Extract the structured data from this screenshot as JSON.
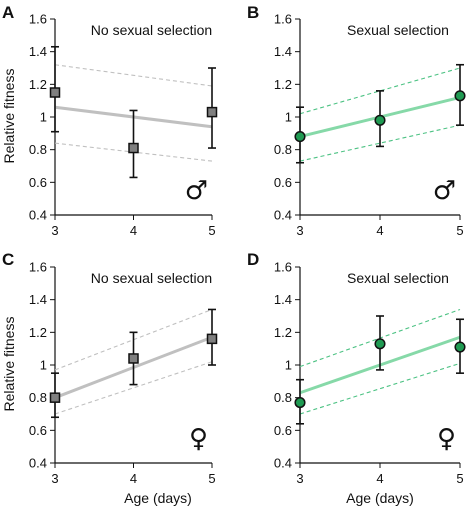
{
  "figure": {
    "ylabel": "Relative fitness",
    "xlabel": "Age (days)",
    "colors": {
      "grey_line": "#c0c0c0",
      "grey_marker": "#7f7f7f",
      "green_line": "#86d9a8",
      "green_dash": "#4cc283",
      "green_marker": "#1f9a52",
      "axis": "#111111"
    }
  },
  "chart_data": [
    {
      "type": "scatter",
      "panel": "A",
      "title": "No sexual selection",
      "sex_symbol": "♂",
      "ylabel": "Relative fitness",
      "xlabel": "",
      "marker": "square",
      "style": "grey",
      "xlim": [
        3,
        5
      ],
      "ylim": [
        0.4,
        1.6
      ],
      "xticks": [
        3,
        4,
        5
      ],
      "yticks": [
        0.4,
        0.6,
        0.8,
        1,
        1.2,
        1.4,
        1.6
      ],
      "points": [
        {
          "x": 3,
          "y": 1.15,
          "lo": 0.91,
          "hi": 1.43
        },
        {
          "x": 4,
          "y": 0.81,
          "lo": 0.63,
          "hi": 1.04
        },
        {
          "x": 5,
          "y": 1.03,
          "lo": 0.81,
          "hi": 1.3
        }
      ],
      "fit": {
        "x": [
          3,
          5
        ],
        "y": [
          1.06,
          0.94
        ]
      },
      "ci_upper": {
        "x": [
          3,
          5
        ],
        "y": [
          1.32,
          1.19
        ]
      },
      "ci_lower": {
        "x": [
          3,
          5
        ],
        "y": [
          0.84,
          0.73
        ]
      }
    },
    {
      "type": "scatter",
      "panel": "B",
      "title": "Sexual selection",
      "sex_symbol": "♂",
      "ylabel": "",
      "xlabel": "",
      "marker": "circle",
      "style": "green",
      "xlim": [
        3,
        5
      ],
      "ylim": [
        0.4,
        1.6
      ],
      "xticks": [
        3,
        4,
        5
      ],
      "yticks": [
        0.4,
        0.6,
        0.8,
        1,
        1.2,
        1.4,
        1.6
      ],
      "points": [
        {
          "x": 3,
          "y": 0.88,
          "lo": 0.72,
          "hi": 1.06
        },
        {
          "x": 4,
          "y": 0.98,
          "lo": 0.82,
          "hi": 1.16
        },
        {
          "x": 5,
          "y": 1.13,
          "lo": 0.95,
          "hi": 1.32
        }
      ],
      "fit": {
        "x": [
          3,
          5
        ],
        "y": [
          0.88,
          1.12
        ]
      },
      "ci_upper": {
        "x": [
          3,
          5
        ],
        "y": [
          1.02,
          1.3
        ]
      },
      "ci_lower": {
        "x": [
          3,
          5
        ],
        "y": [
          0.73,
          0.95
        ]
      }
    },
    {
      "type": "scatter",
      "panel": "C",
      "title": "No sexual selection",
      "sex_symbol": "♀",
      "ylabel": "Relative fitness",
      "xlabel": "Age (days)",
      "marker": "square",
      "style": "grey",
      "xlim": [
        3,
        5
      ],
      "ylim": [
        0.4,
        1.6
      ],
      "xticks": [
        3,
        4,
        5
      ],
      "yticks": [
        0.4,
        0.6,
        0.8,
        1,
        1.2,
        1.4,
        1.6
      ],
      "points": [
        {
          "x": 3,
          "y": 0.8,
          "lo": 0.68,
          "hi": 0.95
        },
        {
          "x": 4,
          "y": 1.04,
          "lo": 0.88,
          "hi": 1.2
        },
        {
          "x": 5,
          "y": 1.16,
          "lo": 1.0,
          "hi": 1.34
        }
      ],
      "fit": {
        "x": [
          3,
          5
        ],
        "y": [
          0.8,
          1.17
        ]
      },
      "ci_upper": {
        "x": [
          3,
          5
        ],
        "y": [
          0.97,
          1.34
        ]
      },
      "ci_lower": {
        "x": [
          3,
          5
        ],
        "y": [
          0.7,
          1.02
        ]
      }
    },
    {
      "type": "scatter",
      "panel": "D",
      "title": "Sexual selection",
      "sex_symbol": "♀",
      "ylabel": "",
      "xlabel": "Age (days)",
      "marker": "circle",
      "style": "green",
      "xlim": [
        3,
        5
      ],
      "ylim": [
        0.4,
        1.6
      ],
      "xticks": [
        3,
        4,
        5
      ],
      "yticks": [
        0.4,
        0.6,
        0.8,
        1,
        1.2,
        1.4,
        1.6
      ],
      "points": [
        {
          "x": 3,
          "y": 0.77,
          "lo": 0.64,
          "hi": 0.91
        },
        {
          "x": 4,
          "y": 1.13,
          "lo": 0.97,
          "hi": 1.3
        },
        {
          "x": 5,
          "y": 1.11,
          "lo": 0.95,
          "hi": 1.28
        }
      ],
      "fit": {
        "x": [
          3,
          5
        ],
        "y": [
          0.83,
          1.17
        ]
      },
      "ci_upper": {
        "x": [
          3,
          5
        ],
        "y": [
          0.99,
          1.34
        ]
      },
      "ci_lower": {
        "x": [
          3,
          5
        ],
        "y": [
          0.7,
          1.01
        ]
      }
    }
  ]
}
